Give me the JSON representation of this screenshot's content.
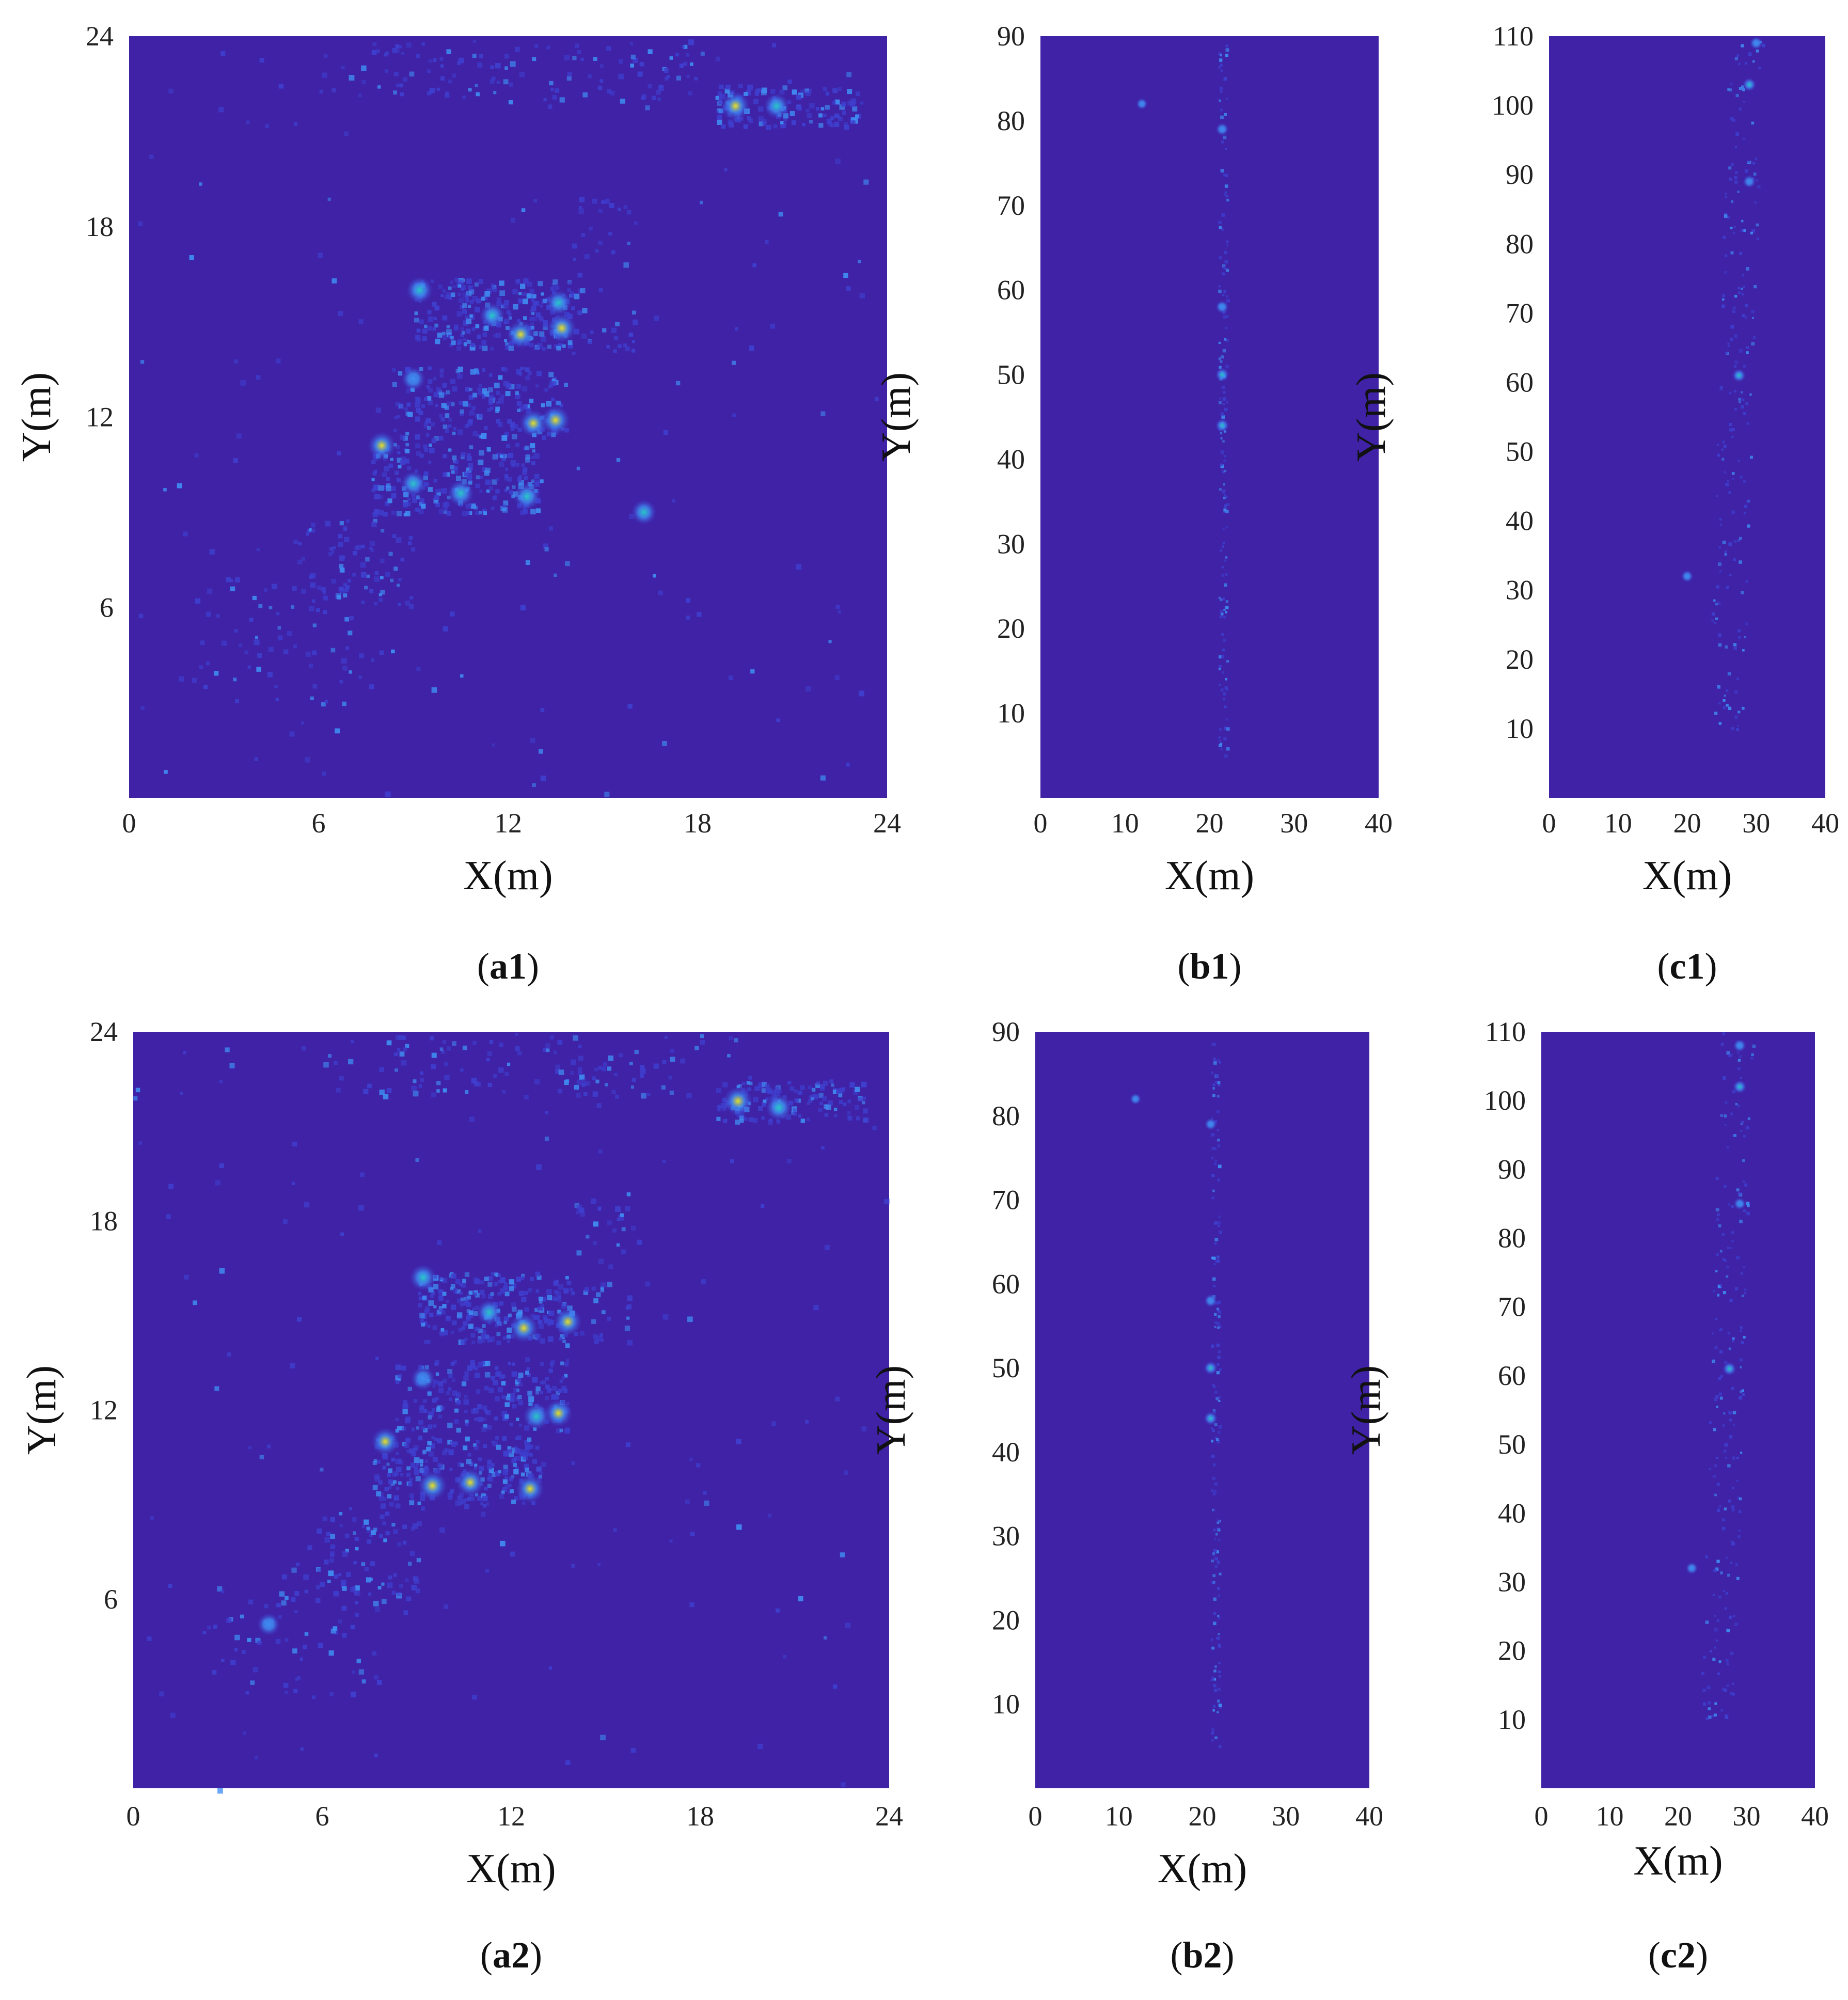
{
  "panels": [
    {
      "id": "a1",
      "caption": "(a1)",
      "caption_letter": "a",
      "caption_number": "1",
      "xlabel": "X(m)",
      "ylabel": "Y(m)",
      "xticks": [
        0,
        6,
        12,
        18,
        24
      ],
      "yticks": [
        6,
        12,
        18,
        24
      ],
      "xlim": [
        0,
        24
      ],
      "ylim": [
        0,
        24
      ]
    },
    {
      "id": "b1",
      "caption": "(b1)",
      "caption_letter": "b",
      "caption_number": "1",
      "xlabel": "X(m)",
      "ylabel": "Y(m)",
      "xticks": [
        0,
        10,
        20,
        30,
        40
      ],
      "yticks": [
        10,
        20,
        30,
        40,
        50,
        60,
        70,
        80,
        90
      ],
      "xlim": [
        0,
        40
      ],
      "ylim": [
        0,
        90
      ]
    },
    {
      "id": "c1",
      "caption": "(c1)",
      "caption_letter": "c",
      "caption_number": "1",
      "xlabel": "X(m)",
      "ylabel": "Y(m)",
      "xticks": [
        0,
        10,
        20,
        30,
        40
      ],
      "yticks": [
        10,
        20,
        30,
        40,
        50,
        60,
        70,
        80,
        90,
        100,
        110
      ],
      "xlim": [
        0,
        40
      ],
      "ylim": [
        0,
        110
      ]
    },
    {
      "id": "a2",
      "caption": "(a2)",
      "caption_letter": "a",
      "caption_number": "2",
      "xlabel": "X(m)",
      "ylabel": "Y(m)",
      "xticks": [
        0,
        6,
        12,
        18,
        24
      ],
      "yticks": [
        6,
        12,
        18,
        24
      ],
      "xlim": [
        0,
        24
      ],
      "ylim": [
        0,
        24
      ]
    },
    {
      "id": "b2",
      "caption": "(b2)",
      "caption_letter": "b",
      "caption_number": "2",
      "xlabel": "X(m)",
      "ylabel": "Y(m)",
      "xticks": [
        0,
        10,
        20,
        30,
        40
      ],
      "yticks": [
        10,
        20,
        30,
        40,
        50,
        60,
        70,
        80,
        90
      ],
      "xlim": [
        0,
        40
      ],
      "ylim": [
        0,
        90
      ]
    },
    {
      "id": "c2",
      "caption": "(c2)",
      "caption_letter": "c",
      "caption_number": "2",
      "xlabel": "X(m)",
      "ylabel": "Y(m)",
      "xticks": [
        0,
        10,
        20,
        30,
        40
      ],
      "yticks": [
        10,
        20,
        30,
        40,
        50,
        60,
        70,
        80,
        90,
        100,
        110
      ],
      "xlim": [
        0,
        40
      ],
      "ylim": [
        0,
        110
      ]
    }
  ],
  "colors": {
    "background": "#3f22a6",
    "low": "#3f3fcf",
    "mid": "#3f8df2",
    "high": "#28c7c4",
    "peak": "#e8e020",
    "text": "#222222"
  },
  "chart_data": [
    {
      "panel": "a1",
      "type": "heatmap",
      "xlabel": "X(m)",
      "ylabel": "Y(m)",
      "xlim": [
        0,
        24
      ],
      "ylim": [
        0,
        24
      ],
      "hotspots": [
        {
          "x": 19.2,
          "y": 21.8,
          "intensity": 1.0
        },
        {
          "x": 20.5,
          "y": 21.8,
          "intensity": 0.7
        },
        {
          "x": 9.2,
          "y": 16.0,
          "intensity": 0.8
        },
        {
          "x": 11.5,
          "y": 15.2,
          "intensity": 0.7
        },
        {
          "x": 12.4,
          "y": 14.6,
          "intensity": 0.9
        },
        {
          "x": 13.7,
          "y": 14.8,
          "intensity": 1.0
        },
        {
          "x": 13.6,
          "y": 15.6,
          "intensity": 0.7
        },
        {
          "x": 9.0,
          "y": 13.2,
          "intensity": 0.6
        },
        {
          "x": 12.8,
          "y": 11.8,
          "intensity": 0.9
        },
        {
          "x": 13.5,
          "y": 11.9,
          "intensity": 1.0
        },
        {
          "x": 8.0,
          "y": 11.1,
          "intensity": 0.9
        },
        {
          "x": 9.0,
          "y": 9.9,
          "intensity": 0.7
        },
        {
          "x": 10.5,
          "y": 9.6,
          "intensity": 0.8
        },
        {
          "x": 12.6,
          "y": 9.5,
          "intensity": 0.8
        },
        {
          "x": 16.3,
          "y": 9.0,
          "intensity": 0.7
        }
      ]
    },
    {
      "panel": "b1",
      "type": "heatmap",
      "xlabel": "X(m)",
      "ylabel": "Y(m)",
      "xlim": [
        0,
        40
      ],
      "ylim": [
        0,
        90
      ],
      "hotspots": [
        {
          "x": 21.5,
          "y": 44,
          "intensity": 0.7
        },
        {
          "x": 21.5,
          "y": 50,
          "intensity": 0.7
        },
        {
          "x": 21.5,
          "y": 58,
          "intensity": 0.6
        },
        {
          "x": 21.5,
          "y": 79,
          "intensity": 0.6
        },
        {
          "x": 12,
          "y": 82,
          "intensity": 0.4
        }
      ]
    },
    {
      "panel": "c1",
      "type": "heatmap",
      "xlabel": "X(m)",
      "ylabel": "Y(m)",
      "xlim": [
        0,
        40
      ],
      "ylim": [
        0,
        110
      ],
      "hotspots": [
        {
          "x": 30,
          "y": 109,
          "intensity": 0.6
        },
        {
          "x": 29,
          "y": 103,
          "intensity": 0.7
        },
        {
          "x": 29,
          "y": 89,
          "intensity": 0.6
        },
        {
          "x": 27.5,
          "y": 61,
          "intensity": 0.7
        },
        {
          "x": 20,
          "y": 32,
          "intensity": 0.5
        }
      ]
    },
    {
      "panel": "a2",
      "type": "heatmap",
      "xlabel": "X(m)",
      "ylabel": "Y(m)",
      "xlim": [
        0,
        24
      ],
      "ylim": [
        0,
        24
      ],
      "hotspots": [
        {
          "x": 19.2,
          "y": 21.8,
          "intensity": 1.0
        },
        {
          "x": 20.5,
          "y": 21.6,
          "intensity": 0.8
        },
        {
          "x": 9.2,
          "y": 16.2,
          "intensity": 0.8
        },
        {
          "x": 11.3,
          "y": 15.1,
          "intensity": 0.7
        },
        {
          "x": 12.4,
          "y": 14.6,
          "intensity": 1.0
        },
        {
          "x": 13.8,
          "y": 14.8,
          "intensity": 0.9
        },
        {
          "x": 9.2,
          "y": 13.0,
          "intensity": 0.6
        },
        {
          "x": 12.8,
          "y": 11.8,
          "intensity": 0.8
        },
        {
          "x": 13.5,
          "y": 11.9,
          "intensity": 0.9
        },
        {
          "x": 8.0,
          "y": 11.0,
          "intensity": 0.9
        },
        {
          "x": 9.5,
          "y": 9.6,
          "intensity": 1.0
        },
        {
          "x": 10.7,
          "y": 9.7,
          "intensity": 0.9
        },
        {
          "x": 12.6,
          "y": 9.5,
          "intensity": 0.9
        },
        {
          "x": 4.3,
          "y": 5.2,
          "intensity": 0.5
        }
      ]
    },
    {
      "panel": "b2",
      "type": "heatmap",
      "xlabel": "X(m)",
      "ylabel": "Y(m)",
      "xlim": [
        0,
        40
      ],
      "ylim": [
        0,
        90
      ],
      "hotspots": [
        {
          "x": 21,
          "y": 44,
          "intensity": 0.7
        },
        {
          "x": 21,
          "y": 50,
          "intensity": 0.7
        },
        {
          "x": 21,
          "y": 58,
          "intensity": 0.6
        },
        {
          "x": 21,
          "y": 79,
          "intensity": 0.5
        },
        {
          "x": 12,
          "y": 82,
          "intensity": 0.4
        }
      ]
    },
    {
      "panel": "c2",
      "type": "heatmap",
      "xlabel": "X(m)",
      "ylabel": "Y(m)",
      "xlim": [
        0,
        40
      ],
      "ylim": [
        0,
        110
      ],
      "hotspots": [
        {
          "x": 29,
          "y": 108,
          "intensity": 0.6
        },
        {
          "x": 29,
          "y": 102,
          "intensity": 0.7
        },
        {
          "x": 29,
          "y": 85,
          "intensity": 0.5
        },
        {
          "x": 27.5,
          "y": 61,
          "intensity": 0.7
        },
        {
          "x": 22,
          "y": 32,
          "intensity": 0.5
        }
      ]
    }
  ]
}
